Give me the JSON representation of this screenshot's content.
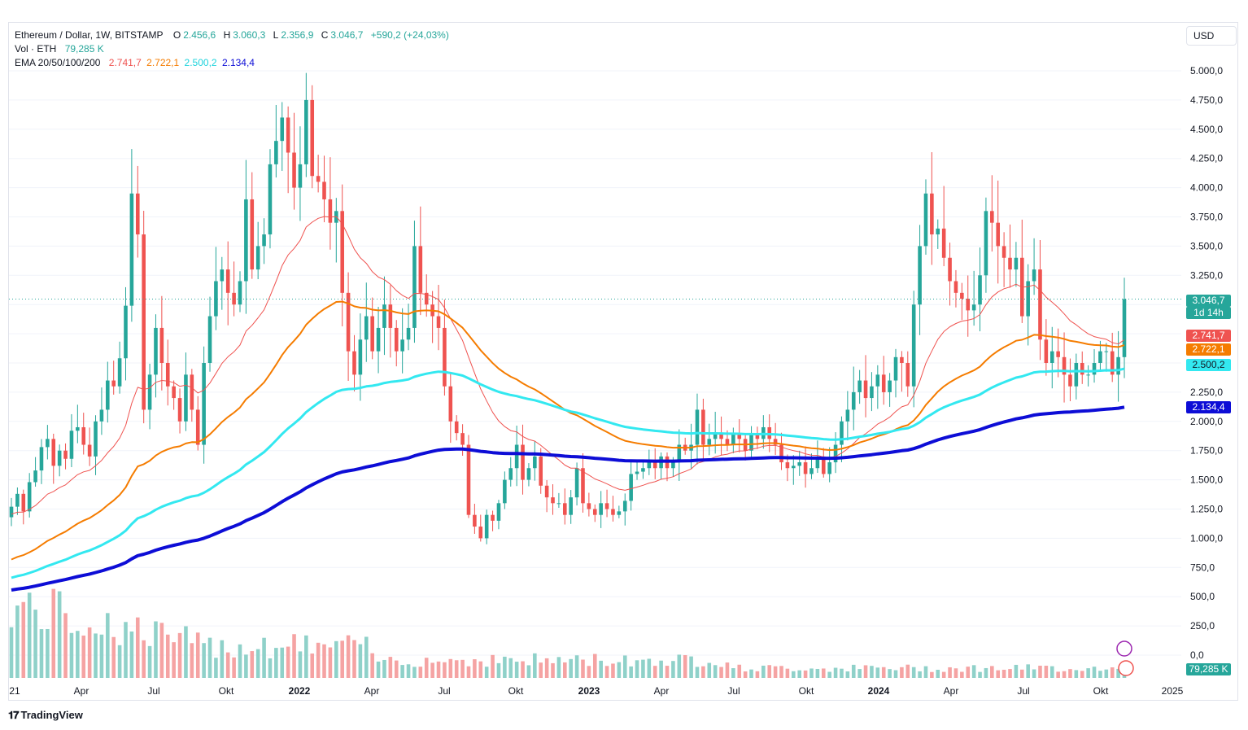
{
  "legend": {
    "symbol": "Ethereum / Dollar, 1W, BITSTAMP",
    "o_label": "O",
    "o_value": "2.456,6",
    "h_label": "H",
    "h_value": "3.060,3",
    "l_label": "L",
    "l_value": "2.356,9",
    "c_label": "C",
    "c_value": "3.046,7",
    "change": "+590,2 (+24,03%)",
    "vol_label": "Vol · ETH",
    "vol_value": "79,285 K",
    "ema_label": "EMA 20/50/100/200",
    "ema20": "2.741,7",
    "ema50": "2.722,1",
    "ema100": "2.500,2",
    "ema200": "2.134,4"
  },
  "currency_button": "USD",
  "price_badge": {
    "value": "3.046,7",
    "countdown": "1d 14h"
  },
  "ema_badges": [
    "2.741,7",
    "2.722,1",
    "2.500,2",
    "2.134,4"
  ],
  "vol_badge": "79,285 K",
  "branding": "TradingView",
  "colors": {
    "up": "#26a69a",
    "down": "#ef5350",
    "vol_up": "#8fd1c9",
    "vol_down": "#f5a3a3",
    "ema20": "#ef5350",
    "ema50": "#f57c00",
    "ema100": "#33e8f0",
    "ema200": "#0d0dd6",
    "grid": "#f0f3fa",
    "last_price_line": "#26a69a"
  },
  "chart_data": {
    "type": "candlestick",
    "interval": "1W",
    "y_axis": {
      "side": "right",
      "ylim": [
        -10,
        5200
      ],
      "ticks": [
        0,
        250,
        500,
        750,
        1000,
        1250,
        1500,
        1750,
        2000,
        2250,
        2500,
        2750,
        3000,
        3250,
        3500,
        3750,
        4000,
        4250,
        4500,
        4750,
        5000
      ],
      "tick_labels": [
        "0,0",
        "250,0",
        "500,0",
        "750,0",
        "1.000,0",
        "1.250,0",
        "1.500,0",
        "1.750,0",
        "2.000,0",
        "2.250,0",
        "2.500,0",
        "2.750,0",
        "3.000,0",
        "3.250,0",
        "3.500,0",
        "3.750,0",
        "4.000,0",
        "4.250,0",
        "4.500,0",
        "4.750,0",
        "5.000,0"
      ]
    },
    "x_axis": {
      "labels": [
        "21",
        "Apr",
        "Jul",
        "Okt",
        "2022",
        "Apr",
        "Jul",
        "Okt",
        "2023",
        "Apr",
        "Jul",
        "Okt",
        "2024",
        "Apr",
        "Jul",
        "Okt",
        "2025"
      ],
      "bold_labels": [
        "2022",
        "2023",
        "2024"
      ]
    },
    "close": [
      1270,
      1380,
      1230,
      1480,
      1580,
      1780,
      1850,
      1620,
      1750,
      1680,
      1920,
      1950,
      1800,
      1700,
      2000,
      2100,
      2350,
      2300,
      2540,
      2990,
      3950,
      3600,
      2100,
      2400,
      2800,
      2500,
      2300,
      2200,
      2000,
      2400,
      2100,
      1800,
      2500,
      2900,
      3200,
      3300,
      3100,
      3000,
      3200,
      3900,
      3300,
      3500,
      3600,
      4200,
      4400,
      4600,
      4300,
      4000,
      4200,
      4750,
      4100,
      4050,
      3900,
      3700,
      3800,
      3100,
      2600,
      2400,
      2700,
      2900,
      2600,
      2800,
      3000,
      2800,
      2600,
      2700,
      2800,
      3500,
      3100,
      3000,
      2900,
      2800,
      2300,
      2000,
      1900,
      1800,
      1200,
      1100,
      1000,
      1200,
      1150,
      1300,
      1500,
      1600,
      1800,
      1500,
      1600,
      1700,
      1450,
      1350,
      1300,
      1300,
      1200,
      1350,
      1600,
      1300,
      1250,
      1200,
      1300,
      1250,
      1200,
      1230,
      1320,
      1550,
      1570,
      1600,
      1650,
      1600,
      1700,
      1600,
      1650,
      1800,
      1750,
      1800,
      2100,
      1800,
      1850,
      1900,
      1850,
      1800,
      1900,
      1850,
      1750,
      1900,
      1850,
      1950,
      1850,
      1800,
      1650,
      1600,
      1620,
      1650,
      1550,
      1600,
      1700,
      1550,
      1650,
      1800,
      2000,
      2100,
      2250,
      2350,
      2200,
      2300,
      2400,
      2250,
      2350,
      2550,
      2500,
      2300,
      3000,
      3500,
      3950,
      3600,
      3650,
      3400,
      3200,
      3100,
      3050,
      2950,
      3000,
      3250,
      3800,
      3700,
      3500,
      3400,
      3300,
      3400,
      2900,
      3200,
      3300,
      2700,
      2500,
      2600,
      2550,
      2400,
      2300,
      2500,
      2400,
      2400,
      2500,
      2600,
      2600,
      2400,
      2550,
      3046.7
    ],
    "ema20_last": 2741.7,
    "ema50_last": 2722.1,
    "ema100_last": 2500.2,
    "ema200_last": 2134.4
  }
}
